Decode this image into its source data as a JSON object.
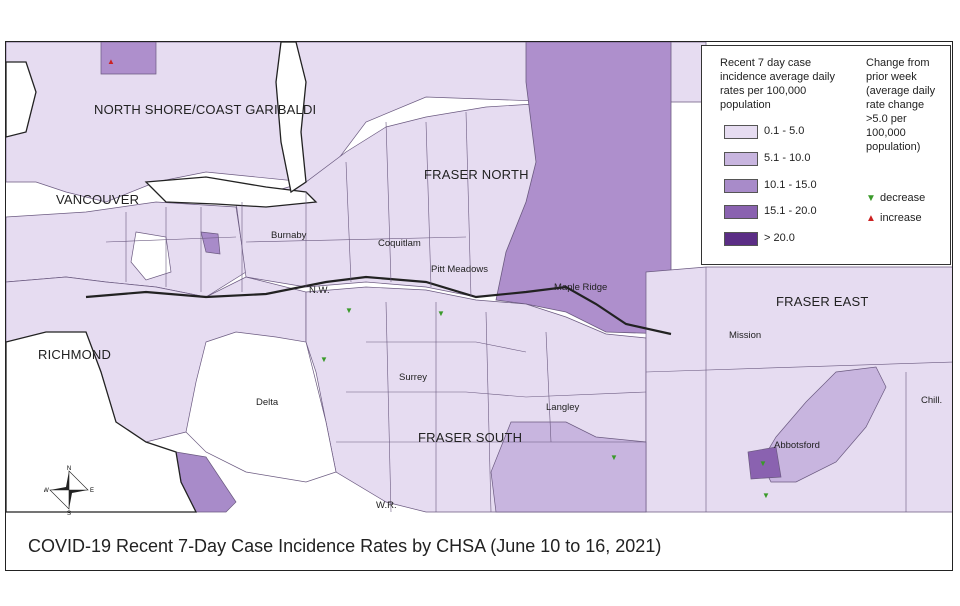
{
  "caption": "COVID-19 Recent 7-Day Case Incidence Rates by CHSA (June 10 to 16, 2021)",
  "legend": {
    "rate_title": "Recent 7 day case incidence average daily rates per 100,000 population",
    "classes": [
      {
        "label": "0.1 - 5.0",
        "color": "#e6dcf1"
      },
      {
        "label": "5.1 - 10.0",
        "color": "#c8b5df"
      },
      {
        "label": "10.1 - 15.0",
        "color": "#a88bc9"
      },
      {
        "label": "15.1 - 20.0",
        "color": "#8a62b0"
      },
      {
        "label": "> 20.0",
        "color": "#5b2d85"
      }
    ],
    "change_title": "Change from prior week (average daily rate change >5.0 per 100,000 population)",
    "change_items": [
      {
        "label": "decrease",
        "symbol": "▼",
        "color": "#3a9a2a"
      },
      {
        "label": "increase",
        "symbol": "▲",
        "color": "#cc2222"
      }
    ]
  },
  "regions": {
    "north_shore": "NORTH SHORE/COAST GARIBALDI",
    "vancouver": "VANCOUVER",
    "fraser_north": "FRASER NORTH",
    "fraser_east": "FRASER EAST",
    "richmond": "RICHMOND",
    "fraser_south": "FRASER SOUTH"
  },
  "places": {
    "burnaby": "Burnaby",
    "coquitlam": "Coquitlam",
    "pitt_meadows": "Pitt Meadows",
    "maple_ridge": "Maple Ridge",
    "nw": "N.W.",
    "mission": "Mission",
    "surrey": "Surrey",
    "delta": "Delta",
    "langley": "Langley",
    "abbotsford": "Abbotsford",
    "chill": "Chill.",
    "wr": "W.R."
  },
  "compass": {
    "n": "N",
    "s": "S",
    "e": "E",
    "w": "W"
  }
}
